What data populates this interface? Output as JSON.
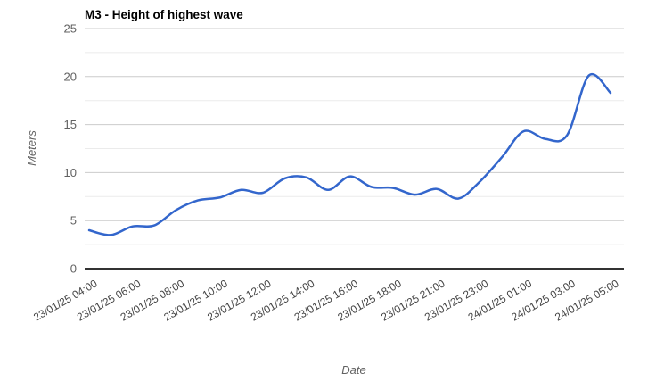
{
  "chart_data": {
    "type": "line",
    "title": "M3 - Height of highest wave",
    "xlabel": "Date",
    "ylabel": "Meters",
    "ylim": [
      0,
      25
    ],
    "yticks": [
      0,
      5,
      10,
      15,
      20,
      25
    ],
    "minor_ytick_step": 2.5,
    "grid": true,
    "legend_position": "none",
    "line_color": "#3366cc",
    "smooth": true,
    "x_tick_indices": [
      0,
      2,
      4,
      6,
      8,
      10,
      12,
      14,
      16,
      18,
      20,
      22,
      24
    ],
    "x_tick_labels": [
      "23/01/25 04:00",
      "23/01/25 06:00",
      "23/01/25 08:00",
      "23/01/25 10:00",
      "23/01/25 12:00",
      "23/01/25 14:00",
      "23/01/25 16:00",
      "23/01/25 18:00",
      "23/01/25 21:00",
      "23/01/25 23:00",
      "24/01/25 01:00",
      "24/01/25 03:00",
      "24/01/25 05:00"
    ],
    "values": [
      4.0,
      3.5,
      4.4,
      4.5,
      6.1,
      7.1,
      7.4,
      8.2,
      7.9,
      9.4,
      9.5,
      8.2,
      9.6,
      8.5,
      8.4,
      7.7,
      8.3,
      7.3,
      9.1,
      11.6,
      14.3,
      13.5,
      13.9,
      20.1,
      18.3
    ],
    "colors": {
      "major_gridline": "#cccccc",
      "minor_gridline": "#ebebeb",
      "baseline": "#333333",
      "title_text": "#000000",
      "axis_label_text": "#616161",
      "tick_label_text": "#444444"
    }
  }
}
